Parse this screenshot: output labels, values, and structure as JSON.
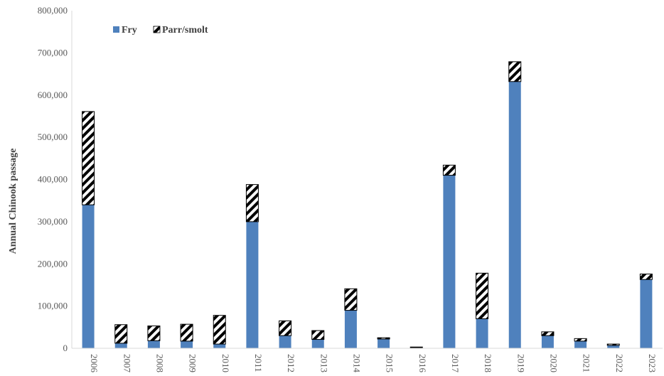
{
  "chart_data": {
    "type": "bar",
    "stacked": true,
    "title": "",
    "xlabel": "",
    "ylabel": "Annual Chinook passage",
    "ylim": [
      0,
      800000
    ],
    "yticks": [
      "0",
      "100,000",
      "200,000",
      "300,000",
      "400,000",
      "500,000",
      "600,000",
      "700,000",
      "800,000"
    ],
    "ytick_values": [
      0,
      100000,
      200000,
      300000,
      400000,
      500000,
      600000,
      700000,
      800000
    ],
    "categories": [
      "2006",
      "2007",
      "2008",
      "2009",
      "2010",
      "2011",
      "2012",
      "2013",
      "2014",
      "2015",
      "2016",
      "2017",
      "2018",
      "2019",
      "2020",
      "2021",
      "2022",
      "2023"
    ],
    "series": [
      {
        "name": "Fry",
        "color": "#4f81bd",
        "pattern": "solid",
        "values": [
          340000,
          12000,
          18000,
          17000,
          10000,
          300000,
          30000,
          21000,
          90000,
          22000,
          1500,
          410000,
          70000,
          632000,
          30000,
          17000,
          7000,
          163000
        ]
      },
      {
        "name": "Parr/smolt",
        "color": "#000000",
        "pattern": "diagonal-hatch",
        "values": [
          221000,
          44000,
          35000,
          40000,
          68000,
          88000,
          35000,
          21000,
          51000,
          3000,
          1500,
          24000,
          108000,
          47000,
          9000,
          6000,
          3000,
          13000
        ]
      }
    ],
    "grid": false,
    "legend": "top-left"
  }
}
